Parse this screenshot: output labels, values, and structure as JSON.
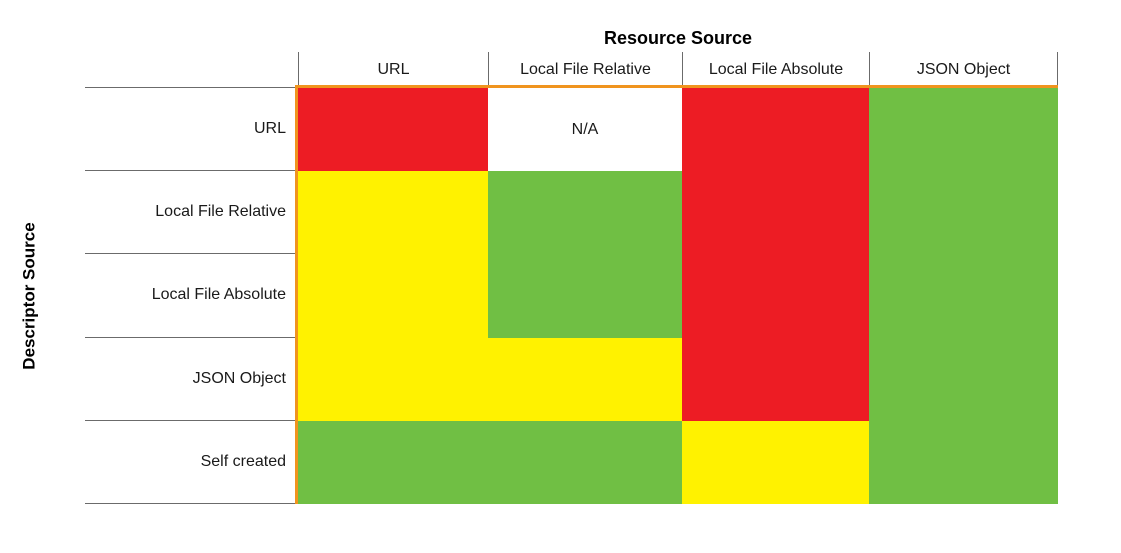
{
  "chart_data": {
    "type": "heatmap",
    "title": "Resource Source",
    "col_axis_label": "Resource Source",
    "row_axis_label": "Descriptor Source",
    "columns": [
      "URL",
      "Local File Relative",
      "Local File Absolute",
      "JSON Object"
    ],
    "rows": [
      "URL",
      "Local File Relative",
      "Local File Absolute",
      "JSON Object",
      "Self created"
    ],
    "values": [
      [
        "red",
        "na",
        "red",
        "green"
      ],
      [
        "yellow",
        "green",
        "red",
        "green"
      ],
      [
        "yellow",
        "green",
        "red",
        "green"
      ],
      [
        "yellow",
        "yellow",
        "red",
        "green"
      ],
      [
        "green",
        "green",
        "yellow",
        "green"
      ]
    ],
    "na_label": "N/A",
    "colors": {
      "red": "#ED1C24",
      "yellow": "#FFF200",
      "green": "#70BF44",
      "na": "#FFFFFF",
      "border_accent": "#F0941E",
      "grid_line": "#6B6B6B"
    },
    "legend_position": "none",
    "grid": false
  }
}
